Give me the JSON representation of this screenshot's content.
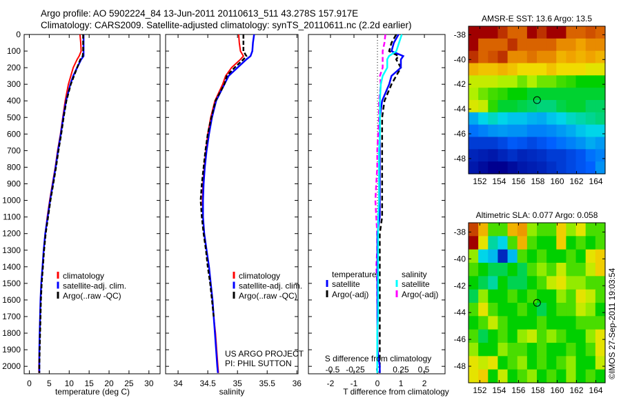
{
  "header": {
    "line1": "Argo profile: AO 5902224_84 13-Jun-2011 20110613_511 43.278S 157.917E",
    "line2": "Climatology: CARS2009. Satellite-adjusted climatology: synTS_20110611.nc (2.2d earlier)"
  },
  "credit": {
    "project": "US ARGO PROJECT",
    "pi": "PI: PHIL SUTTON",
    "timestamp": "©IMOS 27-Sep-2011 19:03:54"
  },
  "colors": {
    "climatology": "#ff0000",
    "satellite": "#0000ff",
    "argo": "#000000",
    "sal_satellite": "#00ffff",
    "sal_argo": "#ff00ff"
  },
  "chart_data": {
    "depth": [
      0,
      50,
      100,
      130,
      150,
      200,
      250,
      300,
      400,
      500,
      600,
      700,
      800,
      900,
      1000,
      1100,
      1200,
      1300,
      1400,
      1500,
      1600,
      1700,
      1800,
      1900,
      2000,
      2040
    ],
    "depth_ticks": [
      0,
      100,
      200,
      300,
      400,
      500,
      600,
      700,
      800,
      900,
      1000,
      1100,
      1200,
      1300,
      1400,
      1500,
      1600,
      1700,
      1800,
      1900,
      2000
    ],
    "depth_range": [
      0,
      2045
    ],
    "temperature": {
      "type": "line",
      "xlabel": "temperature (deg C)",
      "xlim": [
        -1.3,
        32.8
      ],
      "xticks": [
        0,
        5,
        10,
        15,
        20,
        25,
        30
      ],
      "legend": [
        "climatology",
        "satellite-adj. clim.",
        "Argo(..raw -QC)"
      ],
      "series": [
        {
          "name": "climatology",
          "values": [
            12.7,
            12.9,
            13.0,
            12.5,
            12.0,
            11.0,
            10.4,
            9.8,
            9.0,
            8.4,
            7.8,
            7.1,
            6.5,
            5.8,
            5.1,
            4.5,
            4.0,
            3.6,
            3.3,
            3.0,
            2.8,
            2.7,
            2.6,
            2.5,
            2.4,
            2.4
          ]
        },
        {
          "name": "satellite-adj. clim.",
          "values": [
            13.6,
            13.6,
            13.6,
            13.6,
            13.0,
            12.0,
            11.0,
            10.3,
            9.2,
            8.5,
            7.9,
            7.2,
            6.6,
            5.9,
            5.2,
            4.6,
            4.0,
            3.6,
            3.3,
            3.0,
            2.8,
            2.7,
            2.6,
            2.5,
            2.5,
            2.5
          ]
        },
        {
          "name": "Argo(..raw -QC)",
          "values": [
            13.5,
            13.5,
            13.5,
            13.4,
            12.8,
            12.0,
            11.2,
            10.4,
            9.3,
            8.6,
            8.0,
            7.3,
            6.7,
            6.0,
            5.3,
            4.7,
            4.1,
            3.7,
            3.4,
            3.1,
            2.9,
            2.8,
            2.7,
            2.6,
            2.5,
            2.5
          ]
        }
      ]
    },
    "salinity": {
      "type": "line",
      "xlabel": "salinity",
      "xlim": [
        33.79,
        36.02
      ],
      "xticks": [
        "34",
        "34.5",
        "35",
        "35.5",
        "36"
      ],
      "legend": [
        "climatology",
        "satellite-adj. clim.",
        "Argo(..raw -QC)"
      ],
      "series": [
        {
          "name": "climatology",
          "values": [
            35.02,
            35.03,
            35.05,
            35.1,
            35.05,
            34.9,
            34.8,
            34.75,
            34.62,
            34.55,
            34.5,
            34.47,
            34.44,
            34.42,
            34.41,
            34.42,
            34.44,
            34.48,
            34.52,
            34.55,
            34.58,
            34.6,
            34.63,
            34.65,
            34.67,
            34.68
          ]
        },
        {
          "name": "satellite-adj. clim.",
          "values": [
            35.28,
            35.26,
            35.25,
            35.22,
            35.15,
            35.0,
            34.85,
            34.78,
            34.64,
            34.57,
            34.52,
            34.48,
            34.45,
            34.43,
            34.42,
            34.42,
            34.44,
            34.48,
            34.52,
            34.55,
            34.58,
            34.6,
            34.62,
            34.64,
            34.66,
            34.67
          ]
        },
        {
          "name": "Argo(..raw -QC)",
          "values": [
            35.1,
            35.1,
            35.1,
            35.15,
            35.1,
            34.95,
            34.82,
            34.78,
            34.63,
            34.56,
            34.5,
            34.46,
            34.43,
            34.4,
            34.38,
            34.4,
            34.43,
            34.47,
            34.5,
            34.54,
            34.57,
            34.6,
            null,
            null,
            null,
            null
          ]
        }
      ]
    },
    "difference": {
      "type": "line",
      "xlabel_t": "T difference from climatology",
      "xlabel_s": "S difference from climatology",
      "t_xlim": [
        -2.94,
        2.88
      ],
      "s_xlim": [
        -0.765,
        0.735
      ],
      "t_xticks": [
        "-2",
        "-1",
        "0",
        "1",
        "2"
      ],
      "s_xticks": [
        "-0.5",
        "-0.25",
        "0",
        "0.25",
        "0.5"
      ],
      "legend_temperature": {
        "heading": "temperature",
        "satellite": "satellite",
        "argo": "Argo(-adj)"
      },
      "legend_salinity": {
        "heading": "salinity",
        "satellite": "satellite",
        "argo": "Argo(-adj)"
      }
    },
    "sst_map": {
      "type": "heatmap",
      "title": "AMSR-E SST: 13.6 Argo: 13.5",
      "lon_range": [
        150.83,
        164.96
      ],
      "lat_range": [
        -37.31,
        -49.23
      ],
      "lon_ticks": [
        "152",
        "154",
        "156",
        "158",
        "160",
        "162",
        "164"
      ],
      "lat_ticks": [
        "-38",
        "-40",
        "-42",
        "-44",
        "-46",
        "-48"
      ],
      "color_range": [
        9,
        17
      ],
      "float_position": {
        "lon": 157.917,
        "lat": -43.278
      },
      "grid": [
        [
          17,
          17,
          17,
          16.5,
          16,
          16,
          17,
          16.5,
          17,
          17,
          16,
          16,
          16.2,
          16
        ],
        [
          17,
          16,
          16,
          16,
          16.5,
          16,
          16,
          16,
          16,
          15.5,
          15.5,
          15.2,
          15.5,
          15.5
        ],
        [
          16.5,
          16,
          16.2,
          16.5,
          15.5,
          15.5,
          15.8,
          15.5,
          15.5,
          15,
          15.2,
          15,
          15.2,
          15
        ],
        [
          15,
          14.8,
          14.8,
          15,
          14.8,
          14.5,
          14.5,
          14.5,
          14.8,
          14.5,
          14.5,
          14.5,
          14.3,
          14.3
        ],
        [
          14,
          14,
          14,
          13.8,
          13.8,
          13.5,
          13.8,
          13.5,
          13.5,
          13.3,
          13.2,
          13,
          13,
          13
        ],
        [
          13.8,
          13.5,
          13.3,
          13.2,
          13,
          13,
          12.8,
          12.8,
          12.8,
          12.8,
          12.8,
          12.8,
          12.8,
          12.8
        ],
        [
          14.2,
          14,
          13.2,
          12.8,
          12.8,
          12.7,
          12.6,
          12.5,
          12.5,
          12.7,
          12.8,
          12.8,
          12.6,
          12.6
        ],
        [
          11.5,
          12,
          12.2,
          12,
          11.8,
          11.8,
          11.6,
          11.5,
          11.8,
          12,
          12.2,
          12.3,
          12.4,
          12.5
        ],
        [
          10.8,
          11,
          11.2,
          11.3,
          11.2,
          11.2,
          11,
          11,
          11.1,
          11.3,
          11.5,
          11.8,
          12,
          12
        ],
        [
          10,
          10,
          10,
          10.2,
          10.5,
          10.4,
          10.2,
          10.4,
          10.6,
          10.8,
          11,
          11.2,
          11.5,
          11.3
        ],
        [
          9.6,
          9.5,
          9.4,
          9.6,
          9.8,
          9.6,
          9.7,
          9.8,
          10,
          10,
          10.2,
          10.4,
          10.8,
          11
        ],
        [
          9.4,
          9.2,
          9,
          8.8,
          9.2,
          9.4,
          9.5,
          9.6,
          9.8,
          10,
          10.2,
          10.4,
          10.6,
          11.2
        ]
      ]
    },
    "sla_map": {
      "type": "heatmap",
      "title": "Altimetric SLA: 0.077 Argo: 0.058",
      "lon_range": [
        150.83,
        164.96
      ],
      "lat_range": [
        -37.31,
        -49.23
      ],
      "lon_ticks": [
        "152",
        "154",
        "156",
        "158",
        "160",
        "162",
        "164"
      ],
      "lat_ticks": [
        "-38",
        "-40",
        "-42",
        "-44",
        "-46",
        "-48"
      ],
      "color_range": [
        -0.6,
        0.6
      ],
      "float_position": {
        "lon": 157.917,
        "lat": -43.278
      },
      "grid": [
        [
          0.5,
          0.3,
          0.05,
          0.05,
          0.3,
          0.35,
          0.1,
          0.05,
          0.05,
          0.25,
          0.1,
          0.2,
          0.05,
          0.05
        ],
        [
          0.6,
          0.2,
          -0.1,
          -0.15,
          0.05,
          0.3,
          0.05,
          0.0,
          0.0,
          0.25,
          0.0,
          0.05,
          0.0,
          0.05
        ],
        [
          0.1,
          -0.15,
          -0.2,
          -0.5,
          -0.2,
          0.05,
          0.0,
          0.05,
          0.0,
          0.0,
          0.05,
          0.0,
          0.2,
          0.25
        ],
        [
          0.05,
          0.0,
          -0.05,
          -0.05,
          0.0,
          -0.05,
          0.05,
          0.1,
          0.05,
          0.15,
          0.05,
          0.05,
          0.15,
          0.25
        ],
        [
          0.0,
          -0.05,
          -0.1,
          0.0,
          -0.05,
          -0.05,
          0.0,
          0.05,
          0.15,
          0.2,
          0.1,
          0.1,
          0.05,
          0.05
        ],
        [
          -0.05,
          0.1,
          0.0,
          0.0,
          0.05,
          0.0,
          0.05,
          0.0,
          0.0,
          0.1,
          0.05,
          0.2,
          0.15,
          0.05
        ],
        [
          0.05,
          0.2,
          0.05,
          0.0,
          0.0,
          0.05,
          0.0,
          -0.05,
          0.0,
          0.05,
          0.05,
          0.15,
          0.1,
          0.0
        ],
        [
          0.0,
          0.05,
          0.15,
          0.05,
          0.0,
          0.0,
          0.0,
          0.05,
          0.0,
          0.0,
          0.0,
          0.05,
          0.05,
          0.05
        ],
        [
          0.05,
          -0.05,
          0.0,
          0.05,
          0.0,
          0.1,
          0.15,
          0.05,
          0.1,
          0.05,
          0.0,
          0.0,
          0.1,
          0.2
        ],
        [
          0.1,
          0.0,
          0.0,
          0.1,
          0.05,
          0.05,
          0.0,
          0.05,
          0.0,
          0.0,
          0.05,
          0.0,
          0.05,
          0.2
        ],
        [
          0.2,
          0.15,
          0.2,
          0.0,
          0.05,
          0.1,
          0.0,
          0.05,
          0.0,
          0.05,
          0.1,
          0.0,
          0.0,
          0.15
        ],
        [
          0.2,
          0.25,
          0.0,
          0.15,
          0.0,
          0.05,
          0.1,
          0.0,
          0.05,
          0.0,
          0.1,
          0.0,
          0.05,
          0.0
        ]
      ]
    }
  }
}
